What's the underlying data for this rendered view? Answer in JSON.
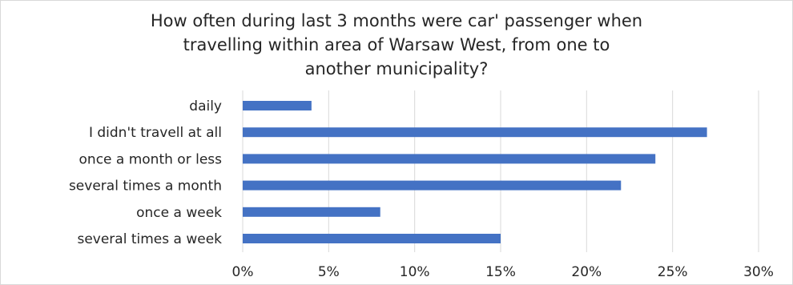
{
  "chart_data": {
    "type": "bar",
    "orientation": "horizontal",
    "title": "How often during last 3 months were car' passenger when travelling within area of Warsaw West, from one to another municipality?",
    "categories": [
      "daily",
      "I didn't travell at all",
      "once a month or less",
      "several times a month",
      "once a week",
      "several times a week"
    ],
    "values": [
      4,
      27,
      24,
      22,
      8,
      15
    ],
    "value_unit": "%",
    "xlim": [
      0,
      30
    ],
    "xticks": [
      "0%",
      "5%",
      "10%",
      "15%",
      "20%",
      "25%",
      "30%"
    ],
    "grid": true,
    "legend": "none",
    "colors": {
      "bar": "#4472c4",
      "grid": "#d9d9d9",
      "text": "#262626"
    }
  }
}
